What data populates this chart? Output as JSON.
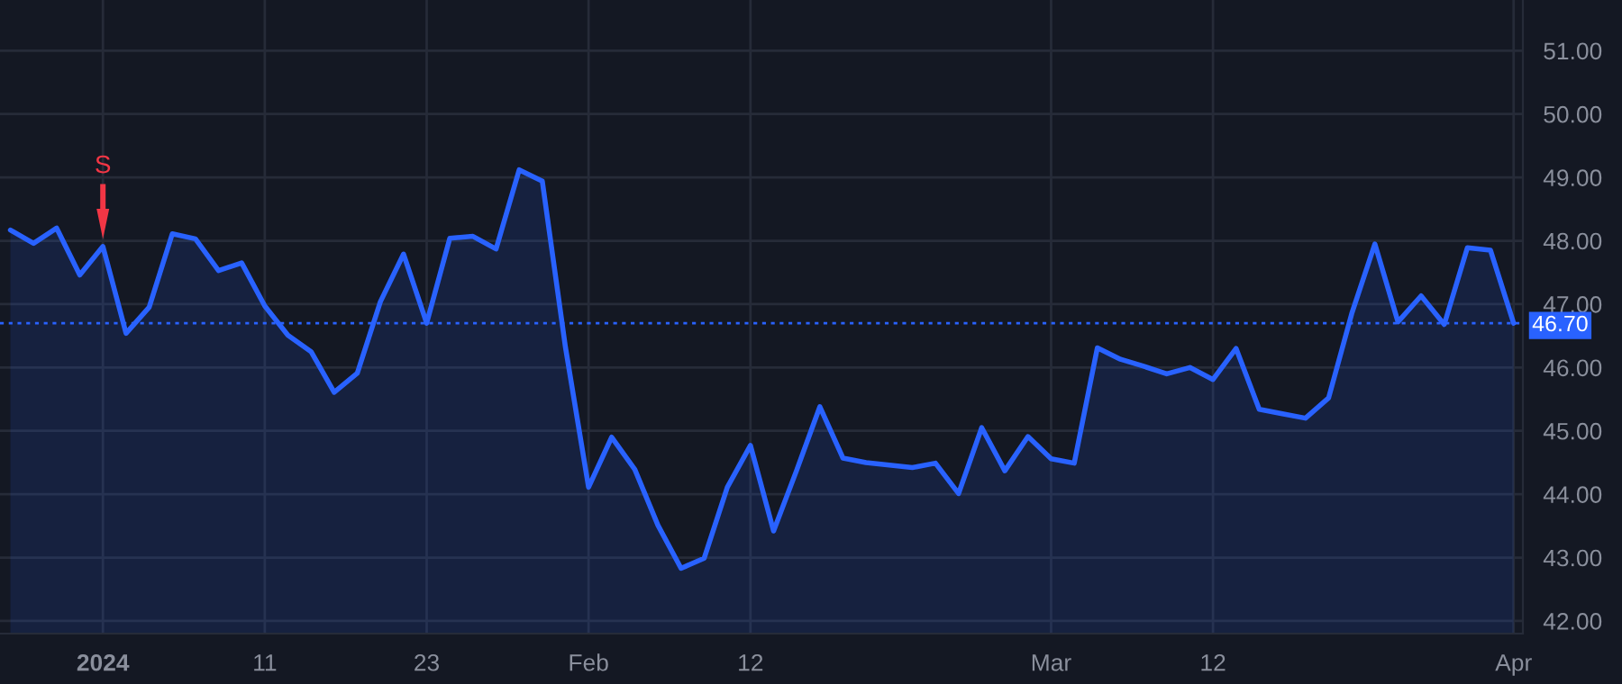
{
  "chart_data": {
    "type": "area",
    "categories": [
      null,
      null,
      null,
      null,
      "2024",
      null,
      null,
      null,
      null,
      null,
      null,
      "11",
      null,
      null,
      null,
      null,
      null,
      null,
      "23",
      null,
      null,
      null,
      null,
      null,
      null,
      "Feb",
      null,
      null,
      null,
      null,
      null,
      null,
      "12",
      null,
      null,
      null,
      null,
      null,
      null,
      null,
      null,
      null,
      null,
      null,
      null,
      "Mar",
      null,
      null,
      null,
      null,
      null,
      null,
      "12",
      null,
      null,
      null,
      null,
      null,
      null,
      null,
      null,
      null,
      null,
      null,
      null,
      "Apr"
    ],
    "series": [
      {
        "color": "#2962ff",
        "values": [
          48.17,
          47.96,
          48.2,
          47.46,
          47.91,
          46.54,
          46.95,
          48.11,
          48.03,
          47.53,
          47.65,
          46.97,
          46.51,
          46.25,
          45.61,
          45.91,
          47.04,
          47.79,
          46.7,
          48.04,
          48.07,
          47.87,
          49.12,
          48.94,
          46.32,
          44.11,
          44.9,
          44.39,
          43.51,
          42.83,
          42.99,
          44.11,
          44.77,
          43.42,
          44.38,
          45.38,
          44.57,
          44.5,
          44.46,
          44.42,
          44.49,
          44.01,
          45.05,
          44.37,
          44.91,
          44.56,
          44.49,
          46.31,
          46.13,
          46.02,
          45.9,
          46.0,
          45.81,
          46.3,
          45.34,
          45.27,
          45.2,
          45.52,
          46.85,
          47.95,
          46.72,
          47.13,
          46.68,
          47.89,
          47.85,
          46.7
        ]
      }
    ],
    "ylim": [
      41.8,
      51.8
    ],
    "yticks": [
      {
        "value": 42,
        "label": "42.00"
      },
      {
        "value": 43,
        "label": "43.00"
      },
      {
        "value": 44,
        "label": "44.00"
      },
      {
        "value": 45,
        "label": "45.00"
      },
      {
        "value": 46,
        "label": "46.00"
      },
      {
        "value": 47,
        "label": "47.00"
      },
      {
        "value": 48,
        "label": "48.00"
      },
      {
        "value": 49,
        "label": "49.00"
      },
      {
        "value": 50,
        "label": "50.00"
      },
      {
        "value": 51,
        "label": "51.00"
      }
    ],
    "ref_lines": [
      {
        "axis": "y",
        "value": 46.7,
        "label": "46.70",
        "color": "#2962ff",
        "line_style": "dotted"
      }
    ],
    "annotations": [
      {
        "text": "S",
        "x": "2024",
        "y": 47.91
      }
    ],
    "grid": true,
    "legend": false
  }
}
